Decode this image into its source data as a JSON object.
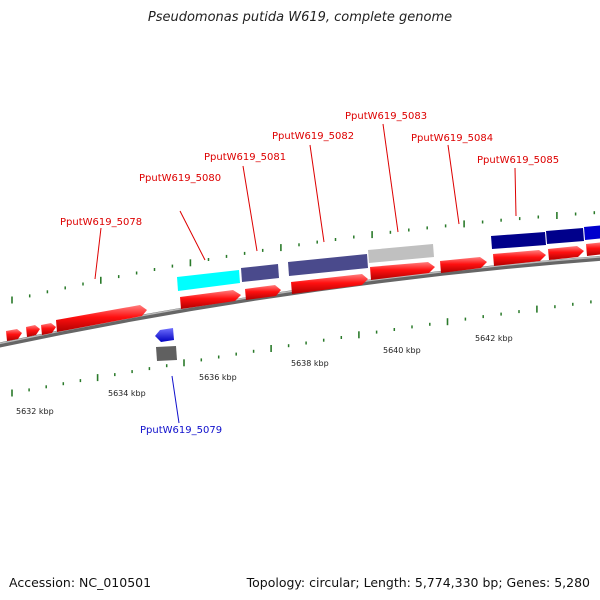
{
  "title": "Pseudomonas putida W619, complete genome",
  "footer": {
    "accession": "Accession: NC_010501",
    "stats": "Topology: circular; Length: 5,774,330 bp; Genes: 5,280"
  },
  "colors": {
    "forward_cds": "#ff0000",
    "reverse_cds": "#1a1aff",
    "tick": "#2a7a2a",
    "backbone": "#888888",
    "label_forward": "#dd0000",
    "label_reverse": "#1010cc"
  },
  "scale_labels": [
    "5632 kbp",
    "5634 kbp",
    "5636 kbp",
    "5638 kbp",
    "5640 kbp",
    "5642 kbp"
  ],
  "gene_labels": [
    {
      "text": "PputW619_5078",
      "strand": "forward"
    },
    {
      "text": "PputW619_5079",
      "strand": "reverse"
    },
    {
      "text": "PputW619_5080",
      "strand": "forward"
    },
    {
      "text": "PputW619_5081",
      "strand": "forward"
    },
    {
      "text": "PputW619_5082",
      "strand": "forward"
    },
    {
      "text": "PputW619_5083",
      "strand": "forward"
    },
    {
      "text": "PputW619_5084",
      "strand": "forward"
    },
    {
      "text": "PputW619_5085",
      "strand": "forward"
    }
  ],
  "cog_blocks": [
    {
      "color": "#00ffff"
    },
    {
      "color": "#4a4a8c"
    },
    {
      "color": "#4a4a8c"
    },
    {
      "color": "#c0c0c0"
    },
    {
      "color": "#00008b"
    },
    {
      "color": "#00008b"
    },
    {
      "color": "#0000cd"
    },
    {
      "color": "#606060"
    }
  ]
}
